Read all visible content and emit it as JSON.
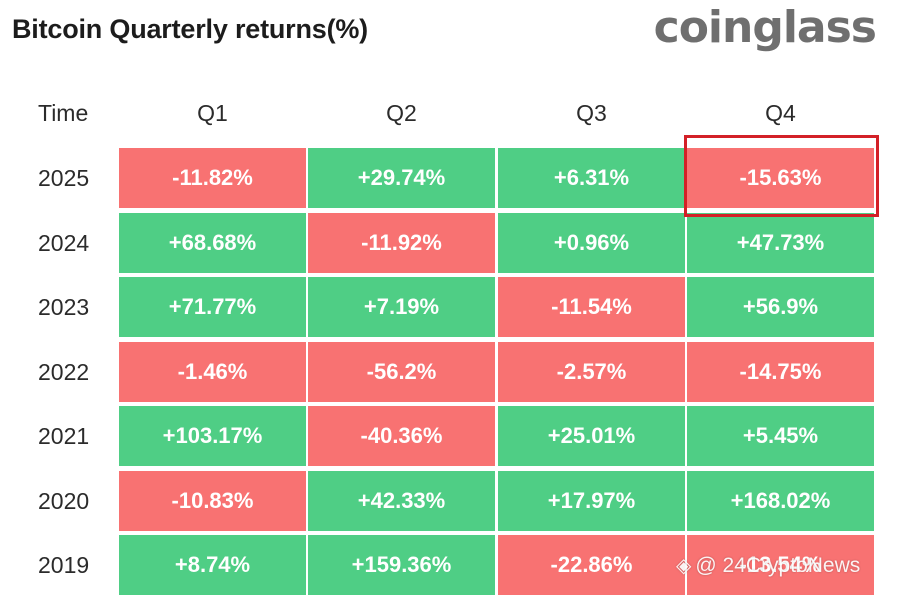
{
  "title": "Bitcoin Quarterly returns(%)",
  "logo_text": "coinglass",
  "watermark": "@ 24CryptoNews",
  "colors": {
    "positive": "#4fce85",
    "negative": "#f87272",
    "highlight_border": "#d32027"
  },
  "chart_data": {
    "type": "table",
    "title": "Bitcoin Quarterly returns(%)",
    "columns": [
      "Time",
      "Q1",
      "Q2",
      "Q3",
      "Q4"
    ],
    "highlighted_cell": {
      "year": "2025",
      "quarter": "Q4"
    },
    "rows": [
      {
        "year": "2025",
        "values": [
          "-11.82%",
          "+29.74%",
          "+6.31%",
          "-15.63%"
        ]
      },
      {
        "year": "2024",
        "values": [
          "+68.68%",
          "-11.92%",
          "+0.96%",
          "+47.73%"
        ]
      },
      {
        "year": "2023",
        "values": [
          "+71.77%",
          "+7.19%",
          "-11.54%",
          "+56.9%"
        ]
      },
      {
        "year": "2022",
        "values": [
          "-1.46%",
          "-56.2%",
          "-2.57%",
          "-14.75%"
        ]
      },
      {
        "year": "2021",
        "values": [
          "+103.17%",
          "-40.36%",
          "+25.01%",
          "+5.45%"
        ]
      },
      {
        "year": "2020",
        "values": [
          "-10.83%",
          "+42.33%",
          "+17.97%",
          "+168.02%"
        ]
      },
      {
        "year": "2019",
        "values": [
          "+8.74%",
          "+159.36%",
          "-22.86%",
          "-13.54%"
        ]
      }
    ]
  }
}
